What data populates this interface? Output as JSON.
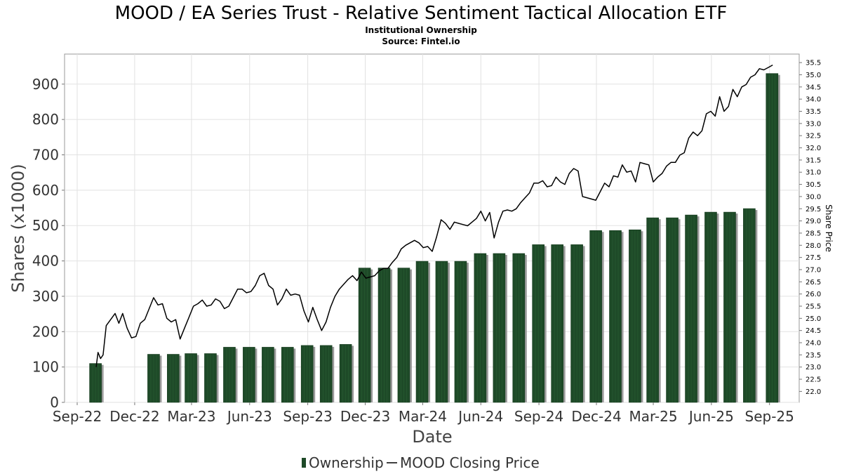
{
  "chart_data": {
    "type": "bar",
    "title": "MOOD / EA Series Trust - Relative Sentiment Tactical Allocation ETF",
    "subtitle_lines": [
      "Institutional Ownership",
      "Source: Fintel.io"
    ],
    "xlabel": "Date",
    "ylabel": "Shares (x1000)",
    "ylabel_right": "Share Price",
    "x_ticks": [
      "Sep-22",
      "Dec-22",
      "Mar-23",
      "Jun-23",
      "Sep-23",
      "Dec-23",
      "Mar-24",
      "Jun-24",
      "Sep-24",
      "Dec-24",
      "Mar-25",
      "Jun-25",
      "Sep-25"
    ],
    "y_ticks": [
      "0",
      "100",
      "200",
      "300",
      "400",
      "500",
      "600",
      "700",
      "800",
      "900"
    ],
    "y_right_ticks": [
      "22.0",
      "22.5",
      "23.0",
      "23.5",
      "24.0",
      "24.5",
      "25.0",
      "25.5",
      "26.0",
      "26.5",
      "27.0",
      "27.5",
      "28.0",
      "28.5",
      "29.0",
      "29.5",
      "30.0",
      "30.5",
      "31.0",
      "31.5",
      "32.0",
      "32.5",
      "33.0",
      "33.5",
      "34.0",
      "34.5",
      "35.0",
      "35.5"
    ],
    "ylim": [
      0,
      985
    ],
    "y_right_lim": [
      21.55,
      35.85
    ],
    "x_range": [
      "2022-08-12",
      "2025-10-18"
    ],
    "grid": true,
    "legend_position": "bottom-center",
    "series": [
      {
        "name": "Ownership",
        "type": "bar",
        "color": "#1e4a28",
        "points": [
          {
            "date": "2022-09-30",
            "value": 110
          },
          {
            "date": "2022-12-31",
            "value": 136
          },
          {
            "date": "2023-01-31",
            "value": 136
          },
          {
            "date": "2023-02-28",
            "value": 138
          },
          {
            "date": "2023-03-31",
            "value": 138
          },
          {
            "date": "2023-04-30",
            "value": 156
          },
          {
            "date": "2023-05-31",
            "value": 156
          },
          {
            "date": "2023-06-30",
            "value": 156
          },
          {
            "date": "2023-07-31",
            "value": 156
          },
          {
            "date": "2023-08-31",
            "value": 161
          },
          {
            "date": "2023-09-30",
            "value": 161
          },
          {
            "date": "2023-10-31",
            "value": 164
          },
          {
            "date": "2023-11-30",
            "value": 380
          },
          {
            "date": "2023-12-31",
            "value": 380
          },
          {
            "date": "2024-01-31",
            "value": 380
          },
          {
            "date": "2024-02-29",
            "value": 399
          },
          {
            "date": "2024-03-31",
            "value": 399
          },
          {
            "date": "2024-04-30",
            "value": 399
          },
          {
            "date": "2024-05-31",
            "value": 421
          },
          {
            "date": "2024-06-30",
            "value": 421
          },
          {
            "date": "2024-07-31",
            "value": 421
          },
          {
            "date": "2024-08-31",
            "value": 446
          },
          {
            "date": "2024-09-30",
            "value": 446
          },
          {
            "date": "2024-10-31",
            "value": 446
          },
          {
            "date": "2024-11-30",
            "value": 486
          },
          {
            "date": "2024-12-31",
            "value": 486
          },
          {
            "date": "2025-01-31",
            "value": 488
          },
          {
            "date": "2025-02-28",
            "value": 522
          },
          {
            "date": "2025-03-31",
            "value": 522
          },
          {
            "date": "2025-04-30",
            "value": 530
          },
          {
            "date": "2025-05-31",
            "value": 538
          },
          {
            "date": "2025-06-30",
            "value": 538
          },
          {
            "date": "2025-07-31",
            "value": 548
          },
          {
            "date": "2025-09-05",
            "value": 930
          }
        ]
      },
      {
        "name": "MOOD Closing Price",
        "type": "line",
        "color": "#000000",
        "points": [
          {
            "date": "2022-10-01",
            "value": 23.0
          },
          {
            "date": "2022-10-04",
            "value": 23.6
          },
          {
            "date": "2022-10-08",
            "value": 23.35
          },
          {
            "date": "2022-10-12",
            "value": 23.5
          },
          {
            "date": "2022-10-17",
            "value": 24.7
          },
          {
            "date": "2022-10-24",
            "value": 24.95
          },
          {
            "date": "2022-10-31",
            "value": 25.2
          },
          {
            "date": "2022-11-06",
            "value": 24.8
          },
          {
            "date": "2022-11-12",
            "value": 25.2
          },
          {
            "date": "2022-11-19",
            "value": 24.6
          },
          {
            "date": "2022-11-26",
            "value": 24.2
          },
          {
            "date": "2022-12-03",
            "value": 24.25
          },
          {
            "date": "2022-12-10",
            "value": 24.8
          },
          {
            "date": "2022-12-17",
            "value": 24.95
          },
          {
            "date": "2022-12-24",
            "value": 25.4
          },
          {
            "date": "2022-12-31",
            "value": 25.85
          },
          {
            "date": "2023-01-07",
            "value": 25.55
          },
          {
            "date": "2023-01-14",
            "value": 25.6
          },
          {
            "date": "2023-01-21",
            "value": 25.0
          },
          {
            "date": "2023-01-28",
            "value": 24.85
          },
          {
            "date": "2023-02-04",
            "value": 24.95
          },
          {
            "date": "2023-02-11",
            "value": 24.15
          },
          {
            "date": "2023-02-18",
            "value": 24.6
          },
          {
            "date": "2023-02-25",
            "value": 25.05
          },
          {
            "date": "2023-03-04",
            "value": 25.5
          },
          {
            "date": "2023-03-11",
            "value": 25.6
          },
          {
            "date": "2023-03-18",
            "value": 25.75
          },
          {
            "date": "2023-03-25",
            "value": 25.5
          },
          {
            "date": "2023-04-01",
            "value": 25.55
          },
          {
            "date": "2023-04-08",
            "value": 25.8
          },
          {
            "date": "2023-04-15",
            "value": 25.7
          },
          {
            "date": "2023-04-22",
            "value": 25.4
          },
          {
            "date": "2023-04-29",
            "value": 25.5
          },
          {
            "date": "2023-05-06",
            "value": 25.85
          },
          {
            "date": "2023-05-13",
            "value": 26.2
          },
          {
            "date": "2023-05-20",
            "value": 26.2
          },
          {
            "date": "2023-05-27",
            "value": 26.05
          },
          {
            "date": "2023-06-03",
            "value": 26.1
          },
          {
            "date": "2023-06-10",
            "value": 26.35
          },
          {
            "date": "2023-06-17",
            "value": 26.75
          },
          {
            "date": "2023-06-24",
            "value": 26.85
          },
          {
            "date": "2023-07-01",
            "value": 26.35
          },
          {
            "date": "2023-07-08",
            "value": 26.2
          },
          {
            "date": "2023-07-15",
            "value": 25.55
          },
          {
            "date": "2023-07-22",
            "value": 25.8
          },
          {
            "date": "2023-07-29",
            "value": 26.2
          },
          {
            "date": "2023-08-05",
            "value": 25.95
          },
          {
            "date": "2023-08-12",
            "value": 26.0
          },
          {
            "date": "2023-08-19",
            "value": 25.95
          },
          {
            "date": "2023-08-26",
            "value": 25.3
          },
          {
            "date": "2023-09-02",
            "value": 24.85
          },
          {
            "date": "2023-09-09",
            "value": 25.45
          },
          {
            "date": "2023-09-16",
            "value": 24.95
          },
          {
            "date": "2023-09-23",
            "value": 24.5
          },
          {
            "date": "2023-09-30",
            "value": 24.85
          },
          {
            "date": "2023-10-07",
            "value": 25.45
          },
          {
            "date": "2023-10-14",
            "value": 25.9
          },
          {
            "date": "2023-10-21",
            "value": 26.2
          },
          {
            "date": "2023-10-28",
            "value": 26.4
          },
          {
            "date": "2023-11-04",
            "value": 26.6
          },
          {
            "date": "2023-11-11",
            "value": 26.75
          },
          {
            "date": "2023-11-18",
            "value": 26.55
          },
          {
            "date": "2023-11-25",
            "value": 26.9
          },
          {
            "date": "2023-12-02",
            "value": 26.65
          },
          {
            "date": "2023-12-09",
            "value": 26.7
          },
          {
            "date": "2023-12-16",
            "value": 26.75
          },
          {
            "date": "2023-12-23",
            "value": 26.95
          },
          {
            "date": "2023-12-30",
            "value": 27.05
          },
          {
            "date": "2024-01-06",
            "value": 27.05
          },
          {
            "date": "2024-01-13",
            "value": 27.3
          },
          {
            "date": "2024-01-20",
            "value": 27.5
          },
          {
            "date": "2024-01-27",
            "value": 27.85
          },
          {
            "date": "2024-02-03",
            "value": 28.0
          },
          {
            "date": "2024-02-10",
            "value": 28.1
          },
          {
            "date": "2024-02-17",
            "value": 28.2
          },
          {
            "date": "2024-02-24",
            "value": 28.1
          },
          {
            "date": "2024-03-02",
            "value": 27.9
          },
          {
            "date": "2024-03-09",
            "value": 27.95
          },
          {
            "date": "2024-03-16",
            "value": 27.75
          },
          {
            "date": "2024-03-23",
            "value": 28.35
          },
          {
            "date": "2024-03-30",
            "value": 29.05
          },
          {
            "date": "2024-04-06",
            "value": 28.9
          },
          {
            "date": "2024-04-13",
            "value": 28.65
          },
          {
            "date": "2024-04-20",
            "value": 28.95
          },
          {
            "date": "2024-04-27",
            "value": 28.9
          },
          {
            "date": "2024-05-04",
            "value": 28.85
          },
          {
            "date": "2024-05-11",
            "value": 28.8
          },
          {
            "date": "2024-05-18",
            "value": 28.95
          },
          {
            "date": "2024-05-25",
            "value": 29.1
          },
          {
            "date": "2024-06-01",
            "value": 29.4
          },
          {
            "date": "2024-06-08",
            "value": 29.0
          },
          {
            "date": "2024-06-15",
            "value": 29.35
          },
          {
            "date": "2024-06-22",
            "value": 28.3
          },
          {
            "date": "2024-06-29",
            "value": 28.95
          },
          {
            "date": "2024-07-06",
            "value": 29.4
          },
          {
            "date": "2024-07-13",
            "value": 29.45
          },
          {
            "date": "2024-07-20",
            "value": 29.4
          },
          {
            "date": "2024-07-27",
            "value": 29.5
          },
          {
            "date": "2024-08-03",
            "value": 29.75
          },
          {
            "date": "2024-08-10",
            "value": 29.95
          },
          {
            "date": "2024-08-17",
            "value": 30.15
          },
          {
            "date": "2024-08-24",
            "value": 30.55
          },
          {
            "date": "2024-08-31",
            "value": 30.55
          },
          {
            "date": "2024-09-07",
            "value": 30.65
          },
          {
            "date": "2024-09-14",
            "value": 30.4
          },
          {
            "date": "2024-09-21",
            "value": 30.45
          },
          {
            "date": "2024-09-28",
            "value": 30.8
          },
          {
            "date": "2024-10-05",
            "value": 30.6
          },
          {
            "date": "2024-10-12",
            "value": 30.5
          },
          {
            "date": "2024-10-19",
            "value": 30.95
          },
          {
            "date": "2024-10-26",
            "value": 31.15
          },
          {
            "date": "2024-11-02",
            "value": 31.05
          },
          {
            "date": "2024-11-09",
            "value": 30.0
          },
          {
            "date": "2024-11-16",
            "value": 29.95
          },
          {
            "date": "2024-11-23",
            "value": 29.9
          },
          {
            "date": "2024-11-30",
            "value": 29.85
          },
          {
            "date": "2024-12-07",
            "value": 30.2
          },
          {
            "date": "2024-12-14",
            "value": 30.55
          },
          {
            "date": "2024-12-21",
            "value": 30.4
          },
          {
            "date": "2024-12-28",
            "value": 30.85
          },
          {
            "date": "2025-01-04",
            "value": 30.8
          },
          {
            "date": "2025-01-11",
            "value": 31.3
          },
          {
            "date": "2025-01-18",
            "value": 31.0
          },
          {
            "date": "2025-01-25",
            "value": 31.05
          },
          {
            "date": "2025-02-01",
            "value": 30.6
          },
          {
            "date": "2025-02-08",
            "value": 31.4
          },
          {
            "date": "2025-02-15",
            "value": 31.35
          },
          {
            "date": "2025-02-22",
            "value": 31.3
          },
          {
            "date": "2025-03-01",
            "value": 30.6
          },
          {
            "date": "2025-03-08",
            "value": 30.8
          },
          {
            "date": "2025-03-15",
            "value": 30.95
          },
          {
            "date": "2025-03-22",
            "value": 31.25
          },
          {
            "date": "2025-03-29",
            "value": 31.4
          },
          {
            "date": "2025-04-05",
            "value": 31.4
          },
          {
            "date": "2025-04-12",
            "value": 31.7
          },
          {
            "date": "2025-04-19",
            "value": 31.8
          },
          {
            "date": "2025-04-26",
            "value": 32.4
          },
          {
            "date": "2025-05-03",
            "value": 32.65
          },
          {
            "date": "2025-05-10",
            "value": 32.5
          },
          {
            "date": "2025-05-17",
            "value": 32.7
          },
          {
            "date": "2025-05-24",
            "value": 33.4
          },
          {
            "date": "2025-05-31",
            "value": 33.5
          },
          {
            "date": "2025-06-07",
            "value": 33.3
          },
          {
            "date": "2025-06-14",
            "value": 34.1
          },
          {
            "date": "2025-06-21",
            "value": 33.5
          },
          {
            "date": "2025-06-28",
            "value": 33.7
          },
          {
            "date": "2025-07-05",
            "value": 34.4
          },
          {
            "date": "2025-07-12",
            "value": 34.1
          },
          {
            "date": "2025-07-19",
            "value": 34.5
          },
          {
            "date": "2025-07-26",
            "value": 34.6
          },
          {
            "date": "2025-08-02",
            "value": 34.9
          },
          {
            "date": "2025-08-09",
            "value": 35.0
          },
          {
            "date": "2025-08-16",
            "value": 35.25
          },
          {
            "date": "2025-08-23",
            "value": 35.2
          },
          {
            "date": "2025-08-30",
            "value": 35.3
          },
          {
            "date": "2025-09-06",
            "value": 35.4
          }
        ]
      }
    ]
  }
}
